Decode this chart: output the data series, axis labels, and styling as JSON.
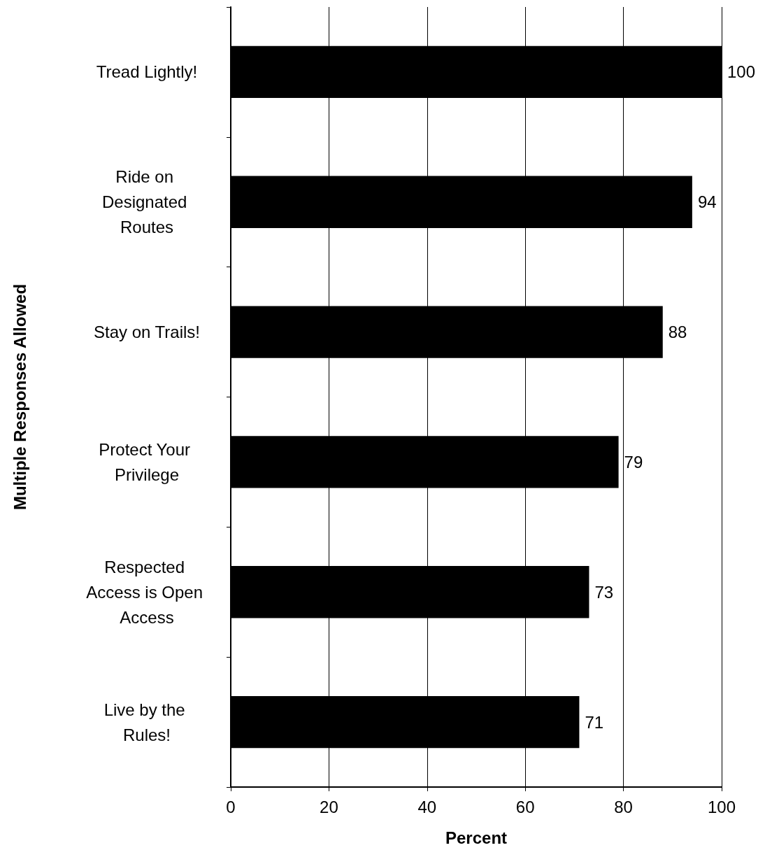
{
  "chart_data": {
    "type": "bar",
    "orientation": "horizontal",
    "xlabel": "Percent",
    "ylabel": "Multiple Responses Allowed",
    "categories": [
      "Tread Lightly!",
      "Ride on Designated Routes",
      "Stay on Trails!",
      "Protect Your Privilege",
      "Respected Access is Open Access",
      "Live by the Rules!"
    ],
    "values": [
      100,
      94,
      88,
      79,
      73,
      71
    ],
    "color": "#000000",
    "data_labels": true,
    "xlim": [
      0,
      100
    ],
    "xticks": [
      0,
      20,
      40,
      60,
      80,
      100
    ],
    "grid": "x"
  }
}
